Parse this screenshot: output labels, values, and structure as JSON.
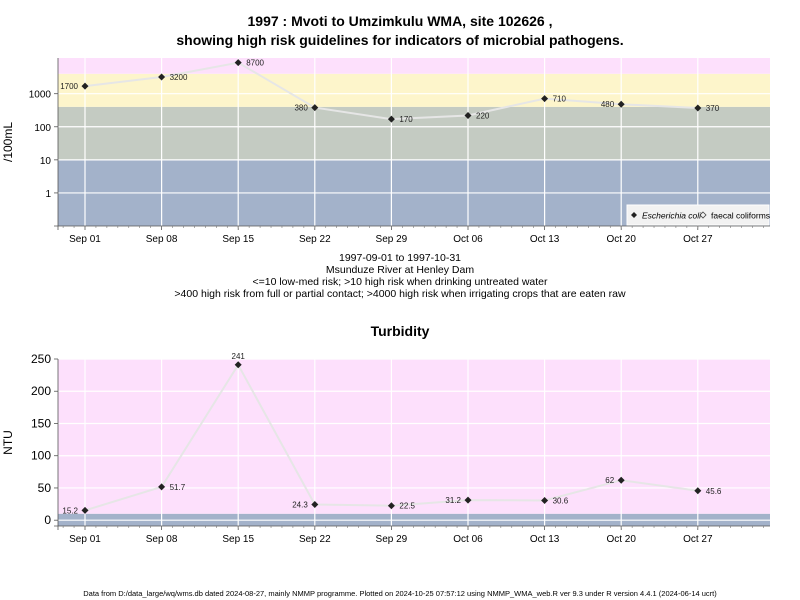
{
  "chart_data": [
    {
      "type": "line",
      "title_line1": "1997 : Mvoti to Umzimkulu WMA, site 102626 ,",
      "title_line2": "showing high risk guidelines for indicators of microbial pathogens.",
      "ylabel": "/100mL",
      "scale": "log10",
      "ylim": [
        0.1,
        12000
      ],
      "yticks": [
        "1",
        "10",
        "100",
        "1000"
      ],
      "ytick_values": [
        1,
        10,
        100,
        1000
      ],
      "categories": [
        "Sep 01",
        "Sep 08",
        "Sep 15",
        "Sep 22",
        "Sep 29",
        "Oct 06",
        "Oct 13",
        "Oct 20",
        "Oct 27"
      ],
      "series": [
        {
          "name": "Escherichia coli",
          "values": [
            1700,
            3200,
            8700,
            380,
            170,
            220,
            710,
            480,
            370
          ],
          "labels": [
            "1700",
            "3200",
            "8700",
            "380",
            "170",
            "220",
            "710",
            "480",
            "370"
          ]
        }
      ],
      "legend": [
        "Escherichia coli",
        "faecal coliforms"
      ],
      "legend_position": "bottom-right",
      "bands": [
        {
          "from": 0.1,
          "to": 10,
          "color": "#a3b2ca"
        },
        {
          "from": 10,
          "to": 400,
          "color": "#c4cbc2"
        },
        {
          "from": 400,
          "to": 4000,
          "color": "#fdf5cb"
        },
        {
          "from": 4000,
          "to": 12000,
          "color": "#fde0fc"
        }
      ],
      "caption": [
        "1997-09-01 to 1997-10-31",
        "Msunduze River at Henley Dam",
        "<=10 low-med risk; >10 high risk when drinking untreated water",
        ">400 high risk from full or partial contact; >4000 high risk when irrigating crops that are eaten raw"
      ]
    },
    {
      "type": "line",
      "title": "Turbidity",
      "ylabel": "NTU",
      "scale": "linear",
      "ylim": [
        -9,
        250
      ],
      "yticks": [
        "0",
        "50",
        "100",
        "150",
        "200",
        "250"
      ],
      "ytick_values": [
        0,
        50,
        100,
        150,
        200,
        250
      ],
      "categories": [
        "Sep 01",
        "Sep 08",
        "Sep 15",
        "Sep 22",
        "Sep 29",
        "Oct 06",
        "Oct 13",
        "Oct 20",
        "Oct 27"
      ],
      "series": [
        {
          "values": [
            15.2,
            51.7,
            241,
            24.3,
            22.5,
            31.2,
            30.6,
            62,
            45.6
          ],
          "labels": [
            "15.2",
            "51.7",
            "241",
            "24.3",
            "22.5",
            "31.2",
            "30.6",
            "62",
            "45.6"
          ]
        }
      ],
      "bands": [
        {
          "from": -9,
          "to": 10,
          "color": "#a3b2ca"
        },
        {
          "from": 10,
          "to": 250,
          "color": "#fde0fc"
        }
      ]
    }
  ],
  "footer": "Data from D:/data_large/wq/wms.db dated 2024-08-27, mainly NMMP programme. Plotted on 2024-10-25 07:57:12 using NMMP_WMA_web.R ver 9.3 under R version 4.4.1 (2024-06-14 ucrt)",
  "colors": {
    "grid": "#ffffff",
    "line": "#e6e6e6",
    "point": "#222222"
  }
}
